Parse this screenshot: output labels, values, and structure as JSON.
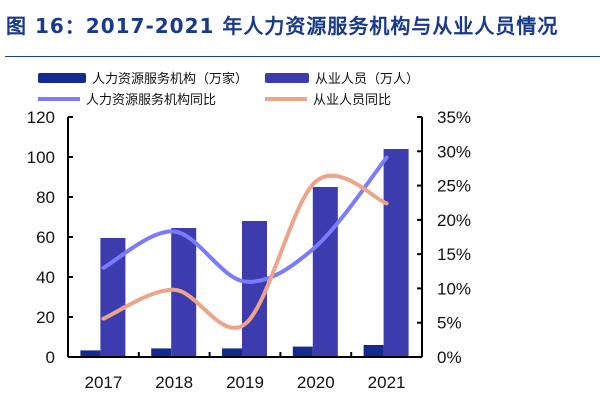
{
  "title": "图 16：2017-2021 年人力资源服务机构与从业人员情况",
  "chart_data": {
    "type": "bar+line",
    "title": "图 16：2017-2021 年人力资源服务机构与从业人员情况",
    "categories": [
      "2017",
      "2018",
      "2019",
      "2020",
      "2021"
    ],
    "left_axis": {
      "ylim": [
        0,
        120
      ],
      "ticks": [
        "0",
        "20",
        "40",
        "60",
        "80",
        "100",
        "120"
      ]
    },
    "right_axis": {
      "ylim": [
        0,
        35
      ],
      "ticks": [
        "0%",
        "5%",
        "10%",
        "15%",
        "20%",
        "25%",
        "30%",
        "35%"
      ]
    },
    "series": [
      {
        "name": "人力资源服务机构（万家）",
        "type": "bar",
        "axis": "left",
        "color": "#132b8f",
        "values": [
          3.3,
          4.3,
          4.3,
          5.2,
          6.0
        ]
      },
      {
        "name": "从业人员（万人）",
        "type": "bar",
        "axis": "left",
        "color": "#3d3cae",
        "values": [
          59.5,
          64.5,
          68,
          85,
          104
        ]
      },
      {
        "name": "人力资源服务机构同比",
        "type": "line",
        "axis": "right",
        "unit": "%",
        "color": "#7b7bff",
        "values": [
          13.0,
          18.3,
          11.0,
          16.1,
          29.1
        ]
      },
      {
        "name": "从业人员同比",
        "type": "line",
        "axis": "right",
        "unit": "%",
        "color": "#eda58a",
        "values": [
          5.6,
          9.8,
          4.8,
          25.6,
          22.4
        ]
      }
    ],
    "legend": "top",
    "grid": false
  }
}
